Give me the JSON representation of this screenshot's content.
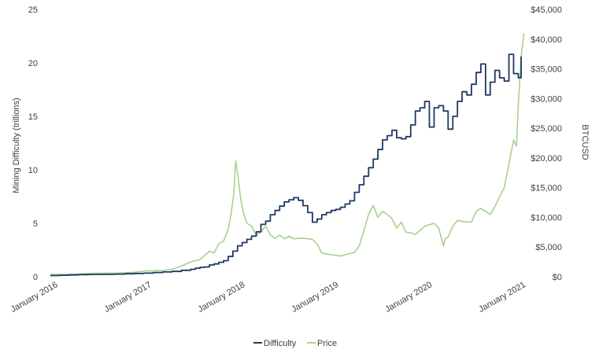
{
  "chart_data": {
    "type": "line",
    "xlabel": "",
    "ylabel": "Mining Difficulty (trillions)",
    "y2label": "BTCUSD",
    "xlim": [
      2016.0,
      2021.08
    ],
    "ylim": [
      0,
      25
    ],
    "y2lim": [
      0,
      45000
    ],
    "x_ticks": [
      {
        "value": 2016.0,
        "label": "January 2016"
      },
      {
        "value": 2017.0,
        "label": "January 2017"
      },
      {
        "value": 2018.0,
        "label": "January 2018"
      },
      {
        "value": 2019.0,
        "label": "January 2019"
      },
      {
        "value": 2020.0,
        "label": "January 2020"
      },
      {
        "value": 2021.0,
        "label": "January 2021"
      }
    ],
    "y_ticks": [
      {
        "value": 0,
        "label": "0"
      },
      {
        "value": 5,
        "label": "5"
      },
      {
        "value": 10,
        "label": "10"
      },
      {
        "value": 15,
        "label": "15"
      },
      {
        "value": 20,
        "label": "20"
      },
      {
        "value": 25,
        "label": "25"
      }
    ],
    "y2_ticks": [
      {
        "value": 0,
        "label": "$0"
      },
      {
        "value": 5000,
        "label": "$5,000"
      },
      {
        "value": 10000,
        "label": "$10,000"
      },
      {
        "value": 15000,
        "label": "$15,000"
      },
      {
        "value": 20000,
        "label": "$20,000"
      },
      {
        "value": 25000,
        "label": "$25,000"
      },
      {
        "value": 30000,
        "label": "$30,000"
      },
      {
        "value": 35000,
        "label": "$35,000"
      },
      {
        "value": 40000,
        "label": "$40,000"
      },
      {
        "value": 45000,
        "label": "$45,000"
      }
    ],
    "grid": false,
    "legend_position": "bottom",
    "series": [
      {
        "name": "Difficulty",
        "axis": "left",
        "color": "#1f3864",
        "step": true,
        "x": [
          2016.0,
          2016.1,
          2016.2,
          2016.3,
          2016.4,
          2016.5,
          2016.6,
          2016.7,
          2016.8,
          2016.9,
          2017.0,
          2017.1,
          2017.2,
          2017.3,
          2017.4,
          2017.5,
          2017.55,
          2017.6,
          2017.65,
          2017.7,
          2017.75,
          2017.8,
          2017.85,
          2017.9,
          2017.95,
          2018.0,
          2018.05,
          2018.1,
          2018.15,
          2018.2,
          2018.25,
          2018.3,
          2018.35,
          2018.4,
          2018.45,
          2018.5,
          2018.55,
          2018.6,
          2018.65,
          2018.7,
          2018.75,
          2018.8,
          2018.85,
          2018.9,
          2018.95,
          2019.0,
          2019.05,
          2019.1,
          2019.15,
          2019.2,
          2019.25,
          2019.3,
          2019.35,
          2019.4,
          2019.45,
          2019.5,
          2019.55,
          2019.6,
          2019.65,
          2019.7,
          2019.75,
          2019.8,
          2019.85,
          2019.9,
          2019.95,
          2020.0,
          2020.05,
          2020.1,
          2020.15,
          2020.2,
          2020.25,
          2020.3,
          2020.35,
          2020.4,
          2020.45,
          2020.5,
          2020.55,
          2020.6,
          2020.65,
          2020.7,
          2020.75,
          2020.8,
          2020.85,
          2020.9,
          2020.95,
          2021.0,
          2021.03
        ],
        "values": [
          0.11,
          0.14,
          0.17,
          0.2,
          0.21,
          0.22,
          0.23,
          0.25,
          0.28,
          0.31,
          0.34,
          0.4,
          0.45,
          0.5,
          0.6,
          0.7,
          0.8,
          0.88,
          0.92,
          1.1,
          1.2,
          1.35,
          1.5,
          1.9,
          2.4,
          2.9,
          3.2,
          3.5,
          3.8,
          4.2,
          4.9,
          5.2,
          5.8,
          6.2,
          6.6,
          7.0,
          7.2,
          7.4,
          7.15,
          6.65,
          6.0,
          5.1,
          5.4,
          5.8,
          6.0,
          6.2,
          6.3,
          6.5,
          6.8,
          7.1,
          7.9,
          8.6,
          9.4,
          10.2,
          11.0,
          11.9,
          12.8,
          13.2,
          13.7,
          13.0,
          12.9,
          13.1,
          14.2,
          15.5,
          15.8,
          16.4,
          14.0,
          15.8,
          16.0,
          15.5,
          13.8,
          15.0,
          16.4,
          17.3,
          17.0,
          18.0,
          19.1,
          19.9,
          17.0,
          18.2,
          19.3,
          18.6,
          18.3,
          20.8,
          19.0,
          18.6,
          20.6
        ]
      },
      {
        "name": "Price",
        "axis": "right",
        "color": "#a9d18e",
        "step": false,
        "x": [
          2016.0,
          2016.15,
          2016.3,
          2016.45,
          2016.6,
          2016.75,
          2016.9,
          2017.0,
          2017.1,
          2017.2,
          2017.3,
          2017.4,
          2017.5,
          2017.6,
          2017.7,
          2017.75,
          2017.8,
          2017.85,
          2017.9,
          2017.93,
          2017.96,
          2017.98,
          2018.0,
          2018.03,
          2018.06,
          2018.1,
          2018.15,
          2018.2,
          2018.25,
          2018.3,
          2018.35,
          2018.4,
          2018.45,
          2018.5,
          2018.55,
          2018.6,
          2018.7,
          2018.8,
          2018.85,
          2018.9,
          2019.0,
          2019.1,
          2019.2,
          2019.25,
          2019.3,
          2019.35,
          2019.4,
          2019.45,
          2019.5,
          2019.55,
          2019.6,
          2019.65,
          2019.7,
          2019.75,
          2019.8,
          2019.85,
          2019.9,
          2020.0,
          2020.1,
          2020.15,
          2020.2,
          2020.22,
          2020.25,
          2020.3,
          2020.35,
          2020.4,
          2020.5,
          2020.55,
          2020.6,
          2020.65,
          2020.7,
          2020.75,
          2020.8,
          2020.85,
          2020.9,
          2020.95,
          2020.98,
          2021.0,
          2021.03,
          2021.06
        ],
        "values": [
          430,
          400,
          450,
          600,
          620,
          640,
          750,
          960,
          1000,
          1050,
          1250,
          1800,
          2500,
          2900,
          4300,
          4000,
          5600,
          6000,
          8000,
          10500,
          14000,
          19500,
          17500,
          13500,
          11000,
          9000,
          8500,
          7000,
          7500,
          8500,
          7000,
          6500,
          7000,
          6400,
          6800,
          6400,
          6500,
          6300,
          5500,
          4000,
          3700,
          3500,
          3900,
          4100,
          5200,
          7800,
          10500,
          12000,
          10000,
          11000,
          10500,
          9800,
          8200,
          9200,
          7500,
          7400,
          7100,
          8500,
          9000,
          8200,
          5200,
          6400,
          6700,
          8500,
          9500,
          9300,
          9200,
          11000,
          11500,
          11000,
          10500,
          11800,
          13500,
          15000,
          19000,
          23000,
          22000,
          29000,
          37000,
          41000
        ]
      }
    ]
  }
}
